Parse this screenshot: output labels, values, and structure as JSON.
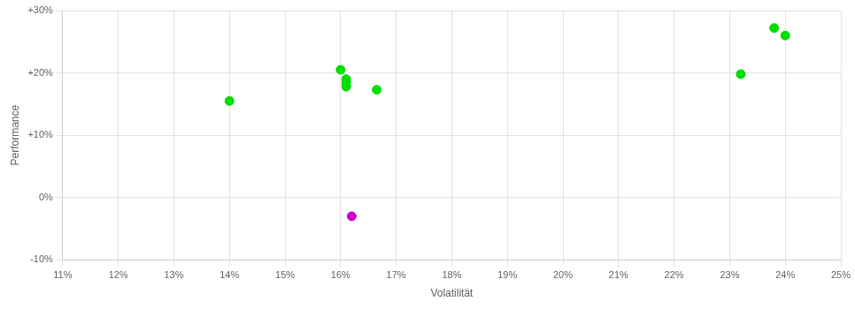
{
  "chart_data": {
    "type": "scatter",
    "xlabel": "Volatilität",
    "ylabel": "Performance",
    "xlim": [
      0.11,
      0.25
    ],
    "ylim": [
      -0.1,
      0.3
    ],
    "xticks": [
      {
        "value": 0.11,
        "label": "11%"
      },
      {
        "value": 0.12,
        "label": "12%"
      },
      {
        "value": 0.13,
        "label": "13%"
      },
      {
        "value": 0.14,
        "label": "14%"
      },
      {
        "value": 0.15,
        "label": "15%"
      },
      {
        "value": 0.16,
        "label": "16%"
      },
      {
        "value": 0.17,
        "label": "17%"
      },
      {
        "value": 0.18,
        "label": "18%"
      },
      {
        "value": 0.19,
        "label": "19%"
      },
      {
        "value": 0.2,
        "label": "20%"
      },
      {
        "value": 0.21,
        "label": "21%"
      },
      {
        "value": 0.22,
        "label": "22%"
      },
      {
        "value": 0.23,
        "label": "23%"
      },
      {
        "value": 0.24,
        "label": "24%"
      },
      {
        "value": 0.25,
        "label": "25%"
      }
    ],
    "yticks": [
      {
        "value": -0.1,
        "label": "-10%"
      },
      {
        "value": 0.0,
        "label": "0%"
      },
      {
        "value": 0.1,
        "label": "+10%"
      },
      {
        "value": 0.2,
        "label": "+20%"
      },
      {
        "value": 0.3,
        "label": "+30%"
      }
    ],
    "grid": true,
    "series": [
      {
        "color": "#00dd00",
        "values": [
          [
            0.14,
            0.155
          ],
          [
            0.16,
            0.205
          ],
          [
            0.161,
            0.19
          ],
          [
            0.161,
            0.185
          ],
          [
            0.161,
            0.178
          ],
          [
            0.1665,
            0.173
          ],
          [
            0.232,
            0.198
          ],
          [
            0.238,
            0.272
          ],
          [
            0.24,
            0.26
          ]
        ]
      },
      {
        "color": "#cc00cc",
        "values": [
          [
            0.162,
            -0.03
          ]
        ]
      }
    ]
  }
}
